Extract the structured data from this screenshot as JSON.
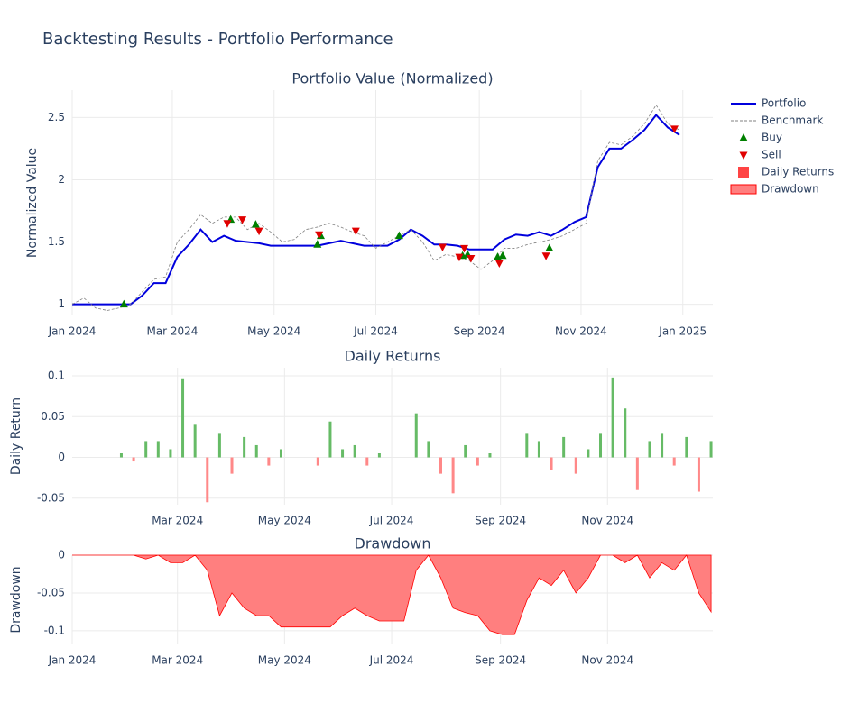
{
  "title": "Backtesting Results - Portfolio Performance",
  "legend_position": "right",
  "chart_data": [
    {
      "type": "line",
      "title": "Portfolio Value (Normalized)",
      "y_label": "Normalized Value",
      "xlim": [
        "2024-01-01",
        "2025-01-19"
      ],
      "ylim": [
        0.91,
        2.72
      ],
      "xticks": [
        {
          "value": "2024-01-01",
          "label": "Jan 2024"
        },
        {
          "value": "2024-03-01",
          "label": "Mar 2024"
        },
        {
          "value": "2024-05-01",
          "label": "May 2024"
        },
        {
          "value": "2024-07-01",
          "label": "Jul 2024"
        },
        {
          "value": "2024-09-01",
          "label": "Sep 2024"
        },
        {
          "value": "2024-11-01",
          "label": "Nov 2024"
        },
        {
          "value": "2025-01-01",
          "label": "Jan 2025"
        }
      ],
      "yticks": [
        1,
        1.5,
        2,
        2.5
      ],
      "grid": true,
      "x": [
        "2024-01-01",
        "2024-01-08",
        "2024-01-15",
        "2024-01-22",
        "2024-01-29",
        "2024-02-05",
        "2024-02-12",
        "2024-02-19",
        "2024-02-26",
        "2024-03-04",
        "2024-03-11",
        "2024-03-18",
        "2024-03-25",
        "2024-04-01",
        "2024-04-08",
        "2024-04-15",
        "2024-04-22",
        "2024-04-29",
        "2024-05-06",
        "2024-05-13",
        "2024-05-20",
        "2024-05-27",
        "2024-06-03",
        "2024-06-10",
        "2024-06-17",
        "2024-06-24",
        "2024-07-01",
        "2024-07-08",
        "2024-07-15",
        "2024-07-22",
        "2024-07-29",
        "2024-08-05",
        "2024-08-12",
        "2024-08-19",
        "2024-08-26",
        "2024-09-02",
        "2024-09-09",
        "2024-09-16",
        "2024-09-23",
        "2024-09-30",
        "2024-10-07",
        "2024-10-14",
        "2024-10-21",
        "2024-10-28",
        "2024-11-04",
        "2024-11-11",
        "2024-11-18",
        "2024-11-25",
        "2024-12-02",
        "2024-12-09",
        "2024-12-16",
        "2024-12-23",
        "2024-12-30"
      ],
      "series": [
        {
          "name": "Portfolio",
          "color": "#0000dd",
          "style": "solid",
          "values": [
            1,
            1,
            1,
            1,
            1,
            1.0,
            1.07,
            1.17,
            1.17,
            1.38,
            1.48,
            1.6,
            1.5,
            1.55,
            1.51,
            1.5,
            1.49,
            1.47,
            1.47,
            1.47,
            1.47,
            1.47,
            1.49,
            1.51,
            1.49,
            1.47,
            1.47,
            1.47,
            1.52,
            1.6,
            1.55,
            1.48,
            1.48,
            1.47,
            1.44,
            1.44,
            1.44,
            1.52,
            1.56,
            1.55,
            1.58,
            1.55,
            1.6,
            1.66,
            1.7,
            2.1,
            2.25,
            2.25,
            2.32,
            2.4,
            2.52,
            2.42,
            2.36
          ]
        },
        {
          "name": "Benchmark",
          "color": "#808080",
          "style": "dash",
          "values": [
            1.0,
            1.05,
            0.97,
            0.95,
            0.97,
            1.0,
            1.1,
            1.2,
            1.22,
            1.5,
            1.6,
            1.72,
            1.65,
            1.7,
            1.7,
            1.6,
            1.65,
            1.58,
            1.5,
            1.52,
            1.6,
            1.62,
            1.65,
            1.62,
            1.58,
            1.55,
            1.45,
            1.5,
            1.55,
            1.6,
            1.5,
            1.35,
            1.4,
            1.38,
            1.35,
            1.28,
            1.35,
            1.45,
            1.45,
            1.48,
            1.5,
            1.52,
            1.55,
            1.6,
            1.65,
            2.15,
            2.3,
            2.28,
            2.35,
            2.45,
            2.6,
            2.45,
            2.4
          ]
        },
        {
          "name": "Buy",
          "color": "#008000",
          "marker": "triangle-up",
          "x": [
            "2024-02-01",
            "2024-04-05",
            "2024-04-20",
            "2024-05-27",
            "2024-05-29",
            "2024-07-15",
            "2024-08-22",
            "2024-08-25",
            "2024-09-12",
            "2024-09-15",
            "2024-10-13"
          ],
          "values": [
            1.0,
            1.68,
            1.64,
            1.48,
            1.55,
            1.55,
            1.39,
            1.4,
            1.38,
            1.39,
            1.45
          ]
        },
        {
          "name": "Sell",
          "color": "#e00000",
          "marker": "triangle-down",
          "x": [
            "2024-04-03",
            "2024-04-12",
            "2024-04-22",
            "2024-05-28",
            "2024-06-19",
            "2024-08-10",
            "2024-08-20",
            "2024-08-23",
            "2024-08-27",
            "2024-09-13",
            "2024-10-11",
            "2024-12-27"
          ],
          "values": [
            1.65,
            1.68,
            1.59,
            1.56,
            1.59,
            1.46,
            1.38,
            1.45,
            1.37,
            1.33,
            1.39,
            2.41
          ]
        }
      ]
    },
    {
      "type": "bar",
      "title": "Daily Returns",
      "y_label": "Daily Return",
      "xlim": [
        "2024-01-01",
        "2024-12-31"
      ],
      "ylim": [
        -0.058,
        0.11
      ],
      "xticks": [
        {
          "value": "2024-03-01",
          "label": "Mar 2024"
        },
        {
          "value": "2024-05-01",
          "label": "May 2024"
        },
        {
          "value": "2024-07-01",
          "label": "Jul 2024"
        },
        {
          "value": "2024-09-01",
          "label": "Sep 2024"
        },
        {
          "value": "2024-11-01",
          "label": "Nov 2024"
        }
      ],
      "yticks": [
        -0.05,
        0,
        0.05,
        0.1
      ],
      "grid": true,
      "x": [
        "2024-01-01",
        "2024-01-08",
        "2024-01-15",
        "2024-01-22",
        "2024-01-29",
        "2024-02-05",
        "2024-02-12",
        "2024-02-19",
        "2024-02-26",
        "2024-03-04",
        "2024-03-11",
        "2024-03-18",
        "2024-03-25",
        "2024-04-01",
        "2024-04-08",
        "2024-04-15",
        "2024-04-22",
        "2024-04-29",
        "2024-05-06",
        "2024-05-13",
        "2024-05-20",
        "2024-05-27",
        "2024-06-03",
        "2024-06-10",
        "2024-06-17",
        "2024-06-24",
        "2024-07-01",
        "2024-07-08",
        "2024-07-15",
        "2024-07-22",
        "2024-07-29",
        "2024-08-05",
        "2024-08-12",
        "2024-08-19",
        "2024-08-26",
        "2024-09-02",
        "2024-09-09",
        "2024-09-16",
        "2024-09-23",
        "2024-09-30",
        "2024-10-07",
        "2024-10-14",
        "2024-10-21",
        "2024-10-28",
        "2024-11-04",
        "2024-11-11",
        "2024-11-18",
        "2024-11-25",
        "2024-12-02",
        "2024-12-09",
        "2024-12-16",
        "2024-12-23",
        "2024-12-30"
      ],
      "series": [
        {
          "name": "Daily Returns",
          "color": "#ff4444",
          "positive_color": "#66bb66",
          "negative_color": "#ff8888",
          "values": [
            0,
            0,
            0,
            0,
            0.005,
            -0.005,
            0.02,
            0.02,
            0.01,
            0.097,
            0.04,
            -0.055,
            0.03,
            -0.02,
            0.025,
            0.015,
            -0.01,
            0.01,
            0,
            0,
            -0.01,
            0.044,
            0.01,
            0.015,
            -0.01,
            0.005,
            0,
            0,
            0.054,
            0.02,
            -0.02,
            -0.044,
            0.015,
            -0.01,
            0.005,
            0,
            0,
            0.03,
            0.02,
            -0.015,
            0.025,
            -0.02,
            0.01,
            0.03,
            0.098,
            0.06,
            -0.04,
            0.02,
            0.03,
            -0.01,
            0.025,
            -0.042,
            0.02
          ]
        }
      ]
    },
    {
      "type": "area",
      "title": "Drawdown",
      "y_label": "Drawdown",
      "xlim": [
        "2024-01-01",
        "2024-12-31"
      ],
      "ylim": [
        -0.118,
        0
      ],
      "xticks": [
        {
          "value": "2024-01-01",
          "label": "Jan 2024"
        },
        {
          "value": "2024-03-01",
          "label": "Mar 2024"
        },
        {
          "value": "2024-05-01",
          "label": "May 2024"
        },
        {
          "value": "2024-07-01",
          "label": "Jul 2024"
        },
        {
          "value": "2024-09-01",
          "label": "Sep 2024"
        },
        {
          "value": "2024-11-01",
          "label": "Nov 2024"
        }
      ],
      "yticks": [
        -0.1,
        -0.05,
        0
      ],
      "grid": true,
      "x": [
        "2024-01-01",
        "2024-01-08",
        "2024-01-15",
        "2024-01-22",
        "2024-01-29",
        "2024-02-05",
        "2024-02-12",
        "2024-02-19",
        "2024-02-26",
        "2024-03-04",
        "2024-03-11",
        "2024-03-18",
        "2024-03-25",
        "2024-04-01",
        "2024-04-08",
        "2024-04-15",
        "2024-04-22",
        "2024-04-29",
        "2024-05-06",
        "2024-05-13",
        "2024-05-20",
        "2024-05-27",
        "2024-06-03",
        "2024-06-10",
        "2024-06-17",
        "2024-06-24",
        "2024-07-01",
        "2024-07-08",
        "2024-07-15",
        "2024-07-22",
        "2024-07-29",
        "2024-08-05",
        "2024-08-12",
        "2024-08-19",
        "2024-08-26",
        "2024-09-02",
        "2024-09-09",
        "2024-09-16",
        "2024-09-23",
        "2024-09-30",
        "2024-10-07",
        "2024-10-14",
        "2024-10-21",
        "2024-10-28",
        "2024-11-04",
        "2024-11-11",
        "2024-11-18",
        "2024-11-25",
        "2024-12-02",
        "2024-12-09",
        "2024-12-16",
        "2024-12-23",
        "2024-12-30"
      ],
      "series": [
        {
          "name": "Drawdown",
          "color": "#ff0000",
          "fill": "#ff7f7f",
          "values": [
            0,
            0,
            0,
            0,
            0,
            0,
            -0.005,
            0,
            -0.01,
            -0.01,
            0,
            -0.02,
            -0.08,
            -0.05,
            -0.07,
            -0.08,
            -0.08,
            -0.095,
            -0.095,
            -0.095,
            -0.095,
            -0.095,
            -0.08,
            -0.07,
            -0.08,
            -0.087,
            -0.087,
            -0.087,
            -0.02,
            0,
            -0.03,
            -0.07,
            -0.076,
            -0.08,
            -0.1,
            -0.105,
            -0.105,
            -0.06,
            -0.03,
            -0.04,
            -0.02,
            -0.05,
            -0.03,
            0,
            0,
            -0.01,
            0,
            -0.03,
            -0.01,
            -0.02,
            0,
            -0.05,
            -0.075
          ]
        }
      ]
    }
  ]
}
